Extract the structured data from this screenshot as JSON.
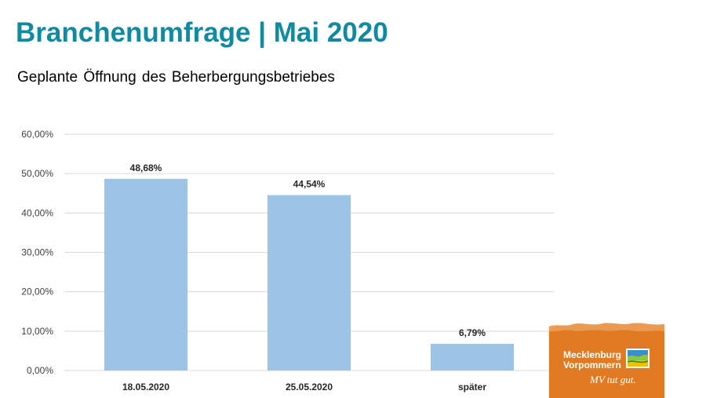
{
  "header": {
    "title": "Branchenumfrage | Mai 2020",
    "subtitle": "Geplante Öffnung des Beherbergungsbetriebes"
  },
  "colors": {
    "title": "#0f8aa0",
    "bar": "#9dc3e6",
    "grid": "#d9d9d9",
    "logo_bg": "#e07b24"
  },
  "chart_data": {
    "type": "bar",
    "categories": [
      "18.05.2020",
      "25.05.2020",
      "später"
    ],
    "values": [
      48.68,
      44.54,
      6.79
    ],
    "value_labels": [
      "48,68%",
      "44,54%",
      "6,79%"
    ],
    "title": "",
    "xlabel": "",
    "ylabel": "",
    "ylim": [
      0,
      60
    ],
    "yticks": [
      0,
      10,
      20,
      30,
      40,
      50,
      60
    ],
    "ytick_labels": [
      "0,00%",
      "10,00%",
      "20,00%",
      "30,00%",
      "40,00%",
      "50,00%",
      "60,00%"
    ],
    "grid": true,
    "legend": "none"
  },
  "logo": {
    "line1": "Mecklenburg",
    "line2": "Vorpommern",
    "slogan": "MV tut gut."
  }
}
